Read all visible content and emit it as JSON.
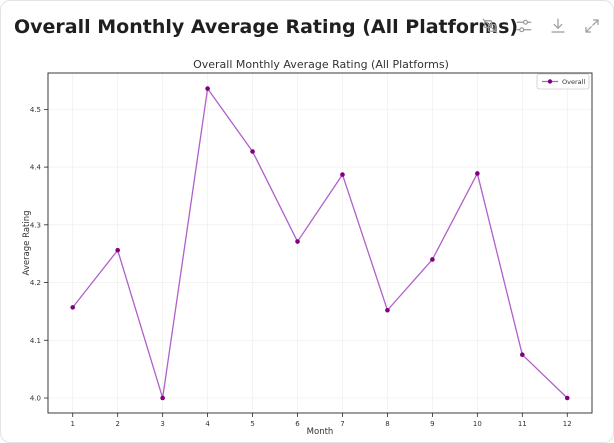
{
  "header": {
    "title": "Overall Monthly Average Rating (All Platforms)",
    "icons": [
      "no-cells-icon",
      "filter-sliders-icon",
      "download-icon",
      "expand-icon"
    ]
  },
  "chart_data": {
    "type": "line",
    "title": "Overall Monthly Average Rating (All Platforms)",
    "xlabel": "Month",
    "ylabel": "Average Rating",
    "x": [
      1,
      2,
      3,
      4,
      5,
      6,
      7,
      8,
      9,
      10,
      11,
      12
    ],
    "series": [
      {
        "name": "Overall",
        "values": [
          4.157,
          4.256,
          4.0,
          4.536,
          4.427,
          4.271,
          4.387,
          4.152,
          4.24,
          4.389,
          4.075,
          4.0
        ],
        "color": "#800080"
      }
    ],
    "xticks": [
      "1",
      "2",
      "3",
      "4",
      "5",
      "6",
      "7",
      "8",
      "9",
      "10",
      "11",
      "12"
    ],
    "yticks": [
      "4.0",
      "4.1",
      "4.2",
      "4.3",
      "4.4",
      "4.5"
    ],
    "xlim": [
      0.45,
      12.55
    ],
    "ylim": [
      3.974,
      4.563
    ],
    "grid": true,
    "legend": "top-right",
    "line_color": "#b060c8",
    "marker_color": "#800080"
  }
}
